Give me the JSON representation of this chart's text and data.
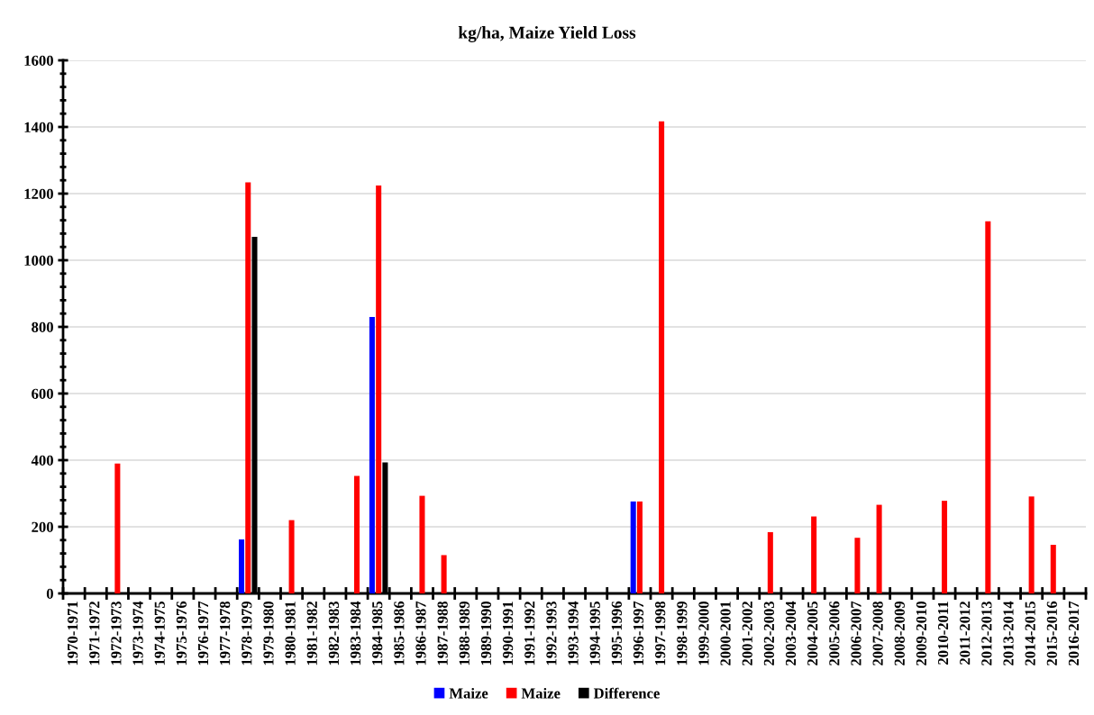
{
  "chart_data": {
    "type": "bar",
    "title": "kg/ha, Maize Yield Loss",
    "categories": [
      "1970-1971",
      "1971-1972",
      "1972-1973",
      "1973-1974",
      "1974-1975",
      "1975-1976",
      "1976-1977",
      "1977-1978",
      "1978-1979",
      "1979-1980",
      "1980-1981",
      "1981-1982",
      "1982-1983",
      "1983-1984",
      "1984-1985",
      "1985-1986",
      "1986-1987",
      "1987-1988",
      "1988-1989",
      "1989-1990",
      "1990-1991",
      "1991-1992",
      "1992-1993",
      "1993-1994",
      "1994-1995",
      "1995-1996",
      "1996-1997",
      "1997-1998",
      "1998-1999",
      "1999-2000",
      "2000-2001",
      "2001-2002",
      "2002-2003",
      "2003-2004",
      "2004-2005",
      "2005-2006",
      "2006-2007",
      "2007-2008",
      "2008-2009",
      "2009-2010",
      "2010-2011",
      "2011-2012",
      "2012-2013",
      "2013-2014",
      "2014-2015",
      "2015-2016",
      "2016-2017"
    ],
    "series": [
      {
        "name": "Maize",
        "color": "#0000ff",
        "values": [
          null,
          null,
          null,
          null,
          null,
          null,
          null,
          null,
          162,
          null,
          null,
          null,
          null,
          null,
          830,
          null,
          null,
          null,
          null,
          null,
          null,
          null,
          null,
          null,
          null,
          null,
          276,
          null,
          null,
          null,
          null,
          null,
          null,
          null,
          null,
          null,
          null,
          null,
          null,
          null,
          null,
          null,
          null,
          null,
          null,
          null,
          null
        ]
      },
      {
        "name": "Maize",
        "color": "#ff0000",
        "values": [
          null,
          null,
          390,
          null,
          null,
          null,
          null,
          null,
          1234,
          null,
          220,
          null,
          null,
          353,
          1224,
          null,
          293,
          115,
          null,
          null,
          null,
          null,
          null,
          null,
          null,
          null,
          276,
          1417,
          null,
          null,
          null,
          null,
          184,
          null,
          231,
          null,
          167,
          266,
          null,
          null,
          278,
          null,
          1117,
          null,
          291,
          146,
          null
        ]
      },
      {
        "name": "Difference",
        "color": "#000000",
        "values": [
          null,
          null,
          null,
          null,
          null,
          null,
          null,
          null,
          1070,
          null,
          null,
          null,
          null,
          null,
          393,
          null,
          null,
          null,
          null,
          null,
          null,
          null,
          null,
          null,
          null,
          null,
          null,
          null,
          null,
          null,
          null,
          null,
          null,
          null,
          null,
          null,
          null,
          null,
          null,
          null,
          null,
          null,
          null,
          null,
          null,
          null,
          null
        ]
      }
    ],
    "ylim": [
      0,
      1600
    ],
    "yticks": [
      0,
      200,
      400,
      600,
      800,
      1000,
      1200,
      1400,
      1600
    ],
    "grid": "y",
    "legend": "bottom"
  }
}
